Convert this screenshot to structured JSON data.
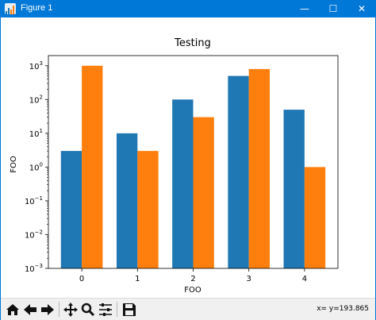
{
  "window": {
    "title": "Figure 1",
    "minimize": "—",
    "maximize": "☐",
    "close": "✕"
  },
  "toolbar": {
    "buttons": [
      {
        "name": "home-icon"
      },
      {
        "name": "back-icon"
      },
      {
        "name": "forward-icon"
      },
      {
        "name": "pan-icon"
      },
      {
        "name": "zoom-icon"
      },
      {
        "name": "configure-subplots-icon"
      },
      {
        "name": "save-icon"
      }
    ],
    "coordinates": "x= y=193.865"
  },
  "chart_data": {
    "type": "bar",
    "title": "Testing",
    "xlabel": "FOO",
    "ylabel": "FOO",
    "yscale": "log",
    "ylim": [
      0.001,
      2000
    ],
    "categories": [
      "0",
      "1",
      "2",
      "3",
      "4"
    ],
    "series": [
      {
        "color": "#1f77b4",
        "values": [
          3,
          10,
          100,
          500,
          50
        ]
      },
      {
        "color": "#ff7f0e",
        "values": [
          1000,
          3,
          30,
          800,
          1
        ]
      }
    ],
    "yticks": [
      {
        "value": 0.001,
        "base": "10",
        "exp": "−3"
      },
      {
        "value": 0.01,
        "base": "10",
        "exp": "−2"
      },
      {
        "value": 0.1,
        "base": "10",
        "exp": "−1"
      },
      {
        "value": 1,
        "base": "10",
        "exp": "0"
      },
      {
        "value": 10,
        "base": "10",
        "exp": "1"
      },
      {
        "value": 100,
        "base": "10",
        "exp": "2"
      },
      {
        "value": 1000,
        "base": "10",
        "exp": "3"
      }
    ],
    "grid": false,
    "legend": "none"
  }
}
